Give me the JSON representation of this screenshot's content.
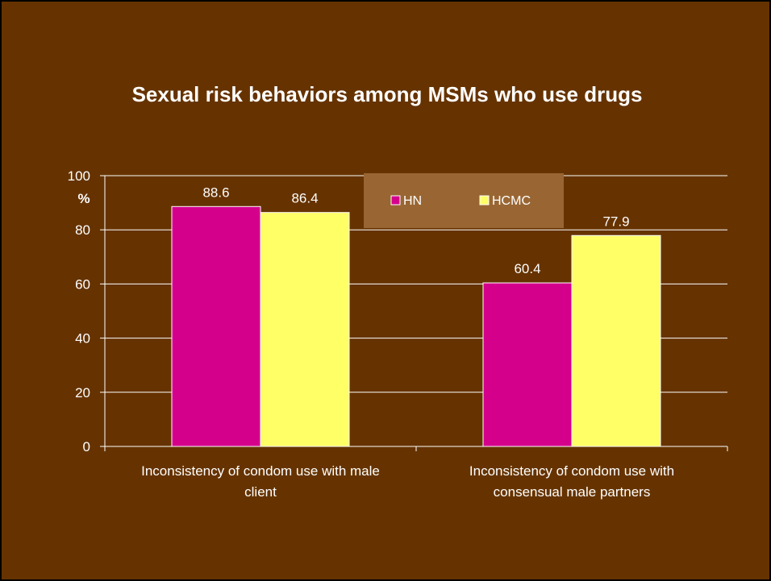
{
  "chart_data": {
    "type": "bar",
    "title": "Sexual risk behaviors among MSMs who use drugs",
    "ylabel": "%",
    "ylim": [
      0,
      100
    ],
    "yticks": [
      0,
      20,
      40,
      60,
      80,
      100
    ],
    "grid": true,
    "legend_position": "top-right",
    "categories": [
      [
        "Inconsistency of condom use with male",
        "client"
      ],
      [
        "Inconsistency of condom use with",
        "consensual male partners"
      ]
    ],
    "series": [
      {
        "name": "HN",
        "values": [
          88.6,
          60.4
        ],
        "labels": [
          "88.6",
          "60.4"
        ],
        "color": "#d4008c"
      },
      {
        "name": "HCMC",
        "values": [
          86.4,
          77.9
        ],
        "labels": [
          "86.4",
          "77.9"
        ],
        "color": "#ffff66"
      }
    ],
    "colors": {
      "background": "#663300",
      "legend_background": "#996633",
      "text": "#ffffff",
      "gridline": "#ffffff"
    }
  }
}
